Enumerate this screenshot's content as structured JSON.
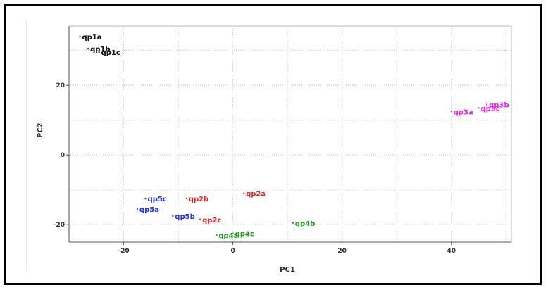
{
  "chart_data": {
    "type": "scatter",
    "title": "",
    "xlabel": "PC1",
    "ylabel": "PC2",
    "xlim": [
      -30,
      51
    ],
    "ylim": [
      -25,
      37
    ],
    "grid": true,
    "xticks": [
      -20,
      0,
      20,
      40
    ],
    "yticks": [
      20,
      0,
      -20
    ],
    "xtick_labels": [
      "-20",
      "0",
      "20",
      "40"
    ],
    "ytick_labels": [
      "20",
      "0",
      "-20"
    ],
    "points": [
      {
        "label": "qp1a",
        "x": -28.0,
        "y": 34.0,
        "color": "#111111"
      },
      {
        "label": "qp1b",
        "x": -26.5,
        "y": 30.5,
        "color": "#111111"
      },
      {
        "label": "qp1c",
        "x": -24.5,
        "y": 29.5,
        "color": "#111111"
      },
      {
        "label": "qp2a",
        "x": 2.0,
        "y": -11.0,
        "color": "#ee2222"
      },
      {
        "label": "qp2b",
        "x": -8.5,
        "y": -12.5,
        "color": "#ee2222"
      },
      {
        "label": "qp2c",
        "x": -6.0,
        "y": -18.5,
        "color": "#ee2222"
      },
      {
        "label": "qp3a",
        "x": 40.0,
        "y": 12.5,
        "color": "#ee22ee"
      },
      {
        "label": "qp3b",
        "x": 46.5,
        "y": 14.5,
        "color": "#ee22ee"
      },
      {
        "label": "qp3c",
        "x": 45.0,
        "y": 13.5,
        "color": "#ee22ee"
      },
      {
        "label": "qp4a",
        "x": -3.0,
        "y": -23.0,
        "color": "#229922"
      },
      {
        "label": "qp4b",
        "x": 11.0,
        "y": -19.5,
        "color": "#229922"
      },
      {
        "label": "qp4c",
        "x": 0.0,
        "y": -22.5,
        "color": "#229922"
      },
      {
        "label": "qp5a",
        "x": -17.5,
        "y": -15.5,
        "color": "#2233ee"
      },
      {
        "label": "qp5b",
        "x": -11.0,
        "y": -17.5,
        "color": "#2233ee"
      },
      {
        "label": "qp5c",
        "x": -16.0,
        "y": -12.5,
        "color": "#2233ee"
      }
    ]
  }
}
